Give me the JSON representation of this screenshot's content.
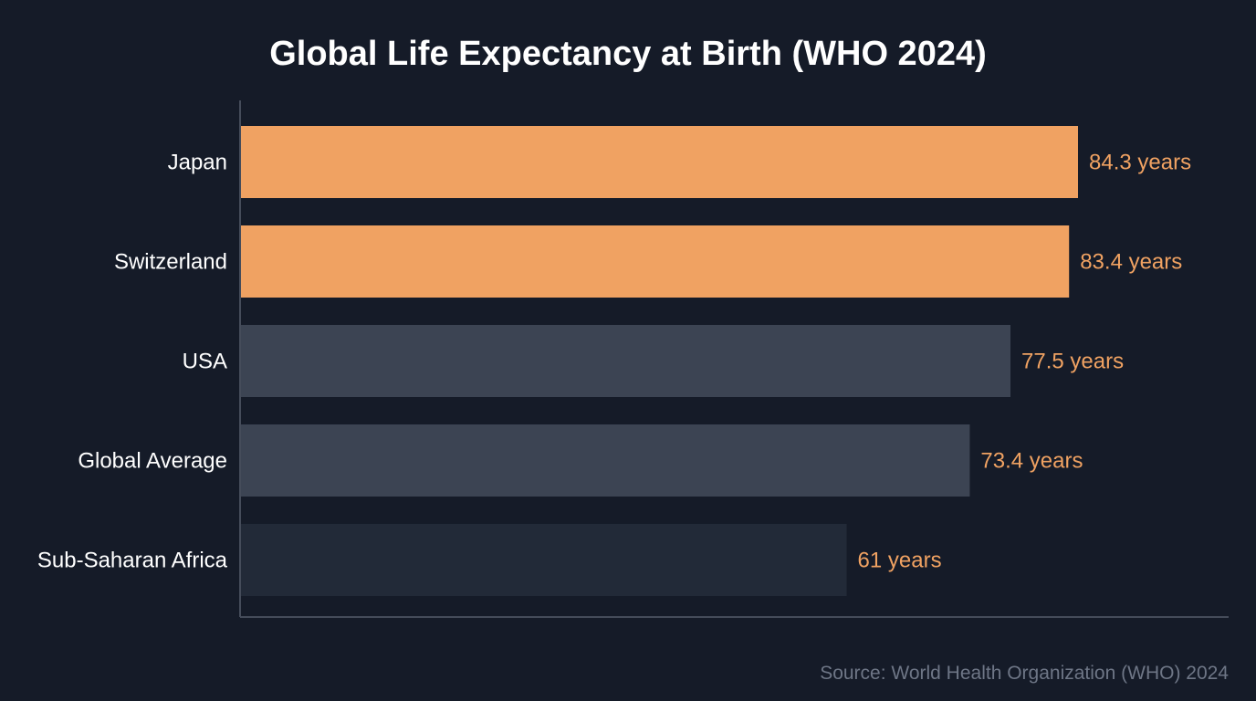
{
  "chart_data": {
    "type": "bar",
    "orientation": "horizontal",
    "title": "Global Life Expectancy at Birth (WHO 2024)",
    "categories": [
      "Japan",
      "Switzerland",
      "USA",
      "Global Average",
      "Sub-Saharan Africa"
    ],
    "values": [
      84.3,
      83.4,
      77.5,
      73.4,
      61
    ],
    "value_labels": [
      "84.3 years",
      "83.4 years",
      "77.5 years",
      "73.4 years",
      "61 years"
    ],
    "bar_colors": [
      "#f0a262",
      "#f0a262",
      "#3c4453",
      "#3c4453",
      "#222a38"
    ],
    "xlim": [
      0,
      84.3
    ],
    "xlabel": "",
    "ylabel": "",
    "grid": false,
    "source": "Source: World Health Organization (WHO) 2024"
  },
  "colors": {
    "background": "#151b28",
    "label": "#f0a262",
    "axis": "#454c5a"
  }
}
